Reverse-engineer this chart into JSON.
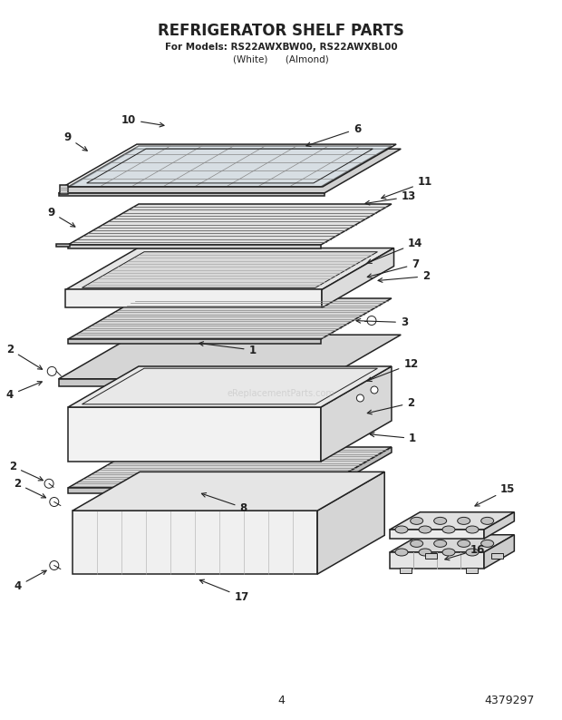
{
  "title": "REFRIGERATOR SHELF PARTS",
  "subtitle1": "For Models: RS22AWXBW00, RS22AWXBL00",
  "subtitle2": "(White)      (Almond)",
  "page_number": "4",
  "part_number": "4379297",
  "watermark": "eReplacementParts.com",
  "background_color": "#ffffff",
  "line_color": "#222222",
  "title_fontsize": 12,
  "subtitle_fontsize": 7.5,
  "label_fontsize": 8.5
}
